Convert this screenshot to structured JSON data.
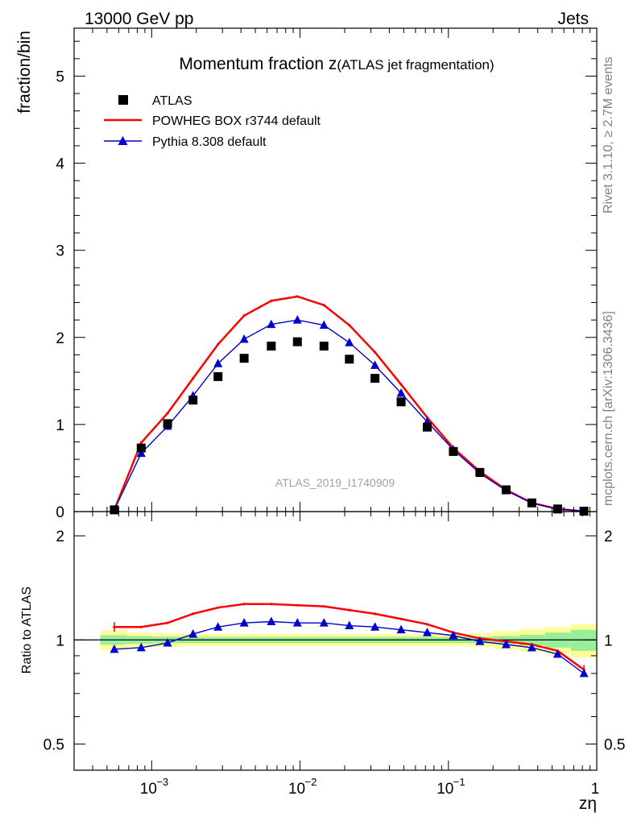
{
  "header": {
    "left": "13000 GeV pp",
    "right": "Jets"
  },
  "side_labels": {
    "rivet": "Rivet 3.1.10, ≥ 2.7M events",
    "mcplots": "mcplots.cern.ch [arXiv:1306.3436]"
  },
  "title": {
    "main": "Momentum fraction z",
    "paren": "(ATLAS jet fragmentation)"
  },
  "watermark": "ATLAS_2019_I1740909",
  "top_ylabel": "fraction/bin",
  "bottom_ylabel": "Ratio to ATLAS",
  "xlabel": "zη",
  "legend": {
    "atlas": "ATLAS",
    "powheg": "POWHEG BOX r3744 default",
    "pythia": "Pythia 8.308 default"
  },
  "colors": {
    "atlas": "#000000",
    "powheg": "#ff0000",
    "pythia": "#0000cc",
    "band_inner": "#99ee99",
    "band_outer": "#ffff99"
  },
  "chart_data": [
    {
      "type": "line",
      "panel": "main",
      "xscale": "log",
      "xlim": [
        0.0003,
        1
      ],
      "ylim": [
        0,
        5.55
      ],
      "yticks": [
        {
          "v": 0,
          "label": "0"
        },
        {
          "v": 1,
          "label": "1"
        },
        {
          "v": 2,
          "label": "2"
        },
        {
          "v": 3,
          "label": "3"
        },
        {
          "v": 4,
          "label": "4"
        },
        {
          "v": 5,
          "label": "5"
        }
      ],
      "xticks": [
        {
          "v": 0.001,
          "label": "10",
          "exp": "−3"
        },
        {
          "v": 0.01,
          "label": "10",
          "exp": "−2"
        },
        {
          "v": 0.1,
          "label": "10",
          "exp": "−1"
        },
        {
          "v": 1,
          "label": "1",
          "exp": ""
        }
      ],
      "x": [
        0.00056,
        0.00085,
        0.00128,
        0.0019,
        0.0028,
        0.0042,
        0.0064,
        0.0096,
        0.0145,
        0.0215,
        0.032,
        0.048,
        0.072,
        0.108,
        0.163,
        0.245,
        0.365,
        0.545,
        0.82
      ],
      "series": [
        {
          "name": "ATLAS",
          "marker": "square",
          "values": [
            0.02,
            0.73,
            1.01,
            1.28,
            1.55,
            1.76,
            1.9,
            1.95,
            1.9,
            1.75,
            1.53,
            1.26,
            0.97,
            0.69,
            0.45,
            0.25,
            0.1,
            0.03,
            0.005
          ]
        },
        {
          "name": "POWHEG BOX r3744 default",
          "marker": "none",
          "values": [
            0.02,
            0.79,
            1.13,
            1.53,
            1.92,
            2.25,
            2.42,
            2.47,
            2.37,
            2.14,
            1.83,
            1.46,
            1.08,
            0.73,
            0.46,
            0.25,
            0.1,
            0.03,
            0.004
          ]
        },
        {
          "name": "Pythia 8.308 default",
          "marker": "triangle",
          "values": [
            0.02,
            0.67,
            0.98,
            1.33,
            1.7,
            1.98,
            2.15,
            2.2,
            2.14,
            1.94,
            1.68,
            1.36,
            1.03,
            0.71,
            0.44,
            0.24,
            0.1,
            0.03,
            0.004
          ]
        }
      ]
    },
    {
      "type": "line",
      "panel": "ratio",
      "xscale": "log",
      "yscale": "log",
      "xlim": [
        0.0003,
        1
      ],
      "ylim": [
        0.42,
        2.35
      ],
      "yticks": [
        {
          "v": 0.5,
          "label": "0.5"
        },
        {
          "v": 1,
          "label": "1"
        },
        {
          "v": 2,
          "label": "2"
        }
      ],
      "x": [
        0.00056,
        0.00085,
        0.00128,
        0.0019,
        0.0028,
        0.0042,
        0.0064,
        0.0096,
        0.0145,
        0.0215,
        0.032,
        0.048,
        0.072,
        0.108,
        0.163,
        0.245,
        0.365,
        0.545,
        0.82
      ],
      "band_edges": [
        0.00045,
        0.00068,
        0.00103,
        0.00155,
        0.00232,
        0.0035,
        0.0052,
        0.0079,
        0.0118,
        0.0177,
        0.0265,
        0.04,
        0.06,
        0.09,
        0.135,
        0.2,
        0.3,
        0.45,
        0.67,
        1.0
      ],
      "band_inner": [
        0.032,
        0.026,
        0.022,
        0.02,
        0.02,
        0.02,
        0.02,
        0.02,
        0.02,
        0.02,
        0.02,
        0.02,
        0.02,
        0.02,
        0.022,
        0.026,
        0.035,
        0.05,
        0.07
      ],
      "band_outer": [
        0.065,
        0.05,
        0.045,
        0.04,
        0.04,
        0.04,
        0.04,
        0.04,
        0.04,
        0.04,
        0.04,
        0.04,
        0.04,
        0.04,
        0.045,
        0.06,
        0.075,
        0.09,
        0.11
      ],
      "series": [
        {
          "name": "POWHEG BOX r3744 default",
          "values": [
            1.09,
            1.09,
            1.12,
            1.19,
            1.24,
            1.27,
            1.27,
            1.26,
            1.25,
            1.22,
            1.19,
            1.15,
            1.11,
            1.05,
            1.01,
            0.99,
            0.97,
            0.93,
            0.82
          ]
        },
        {
          "name": "Pythia 8.308 default",
          "values": [
            0.94,
            0.95,
            0.98,
            1.04,
            1.09,
            1.12,
            1.13,
            1.12,
            1.12,
            1.1,
            1.09,
            1.07,
            1.05,
            1.03,
            0.99,
            0.97,
            0.95,
            0.91,
            0.8
          ]
        }
      ]
    }
  ]
}
